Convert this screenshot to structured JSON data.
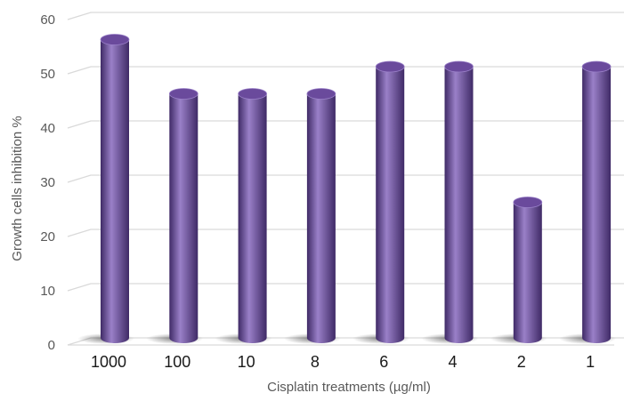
{
  "chart_data": {
    "type": "bar",
    "title": "",
    "xlabel": "Cisplatin treatments (µg/ml)",
    "ylabel": "Growth cells inhibition %",
    "categories": [
      "1000",
      "100",
      "10",
      "8",
      "6",
      "4",
      "2",
      "1"
    ],
    "values": [
      55,
      45,
      45,
      45,
      50,
      50,
      25,
      50
    ],
    "ylim": [
      0,
      60
    ],
    "yticks": [
      "0",
      "10",
      "20",
      "30",
      "40",
      "50",
      "60"
    ],
    "grid": true,
    "legend": "none",
    "style": "3d-cylinder",
    "colors": {
      "bar": "#6a4a9c",
      "bar_light": "#9a80c8",
      "bar_dark": "#3f2a66",
      "grid": "#d9d9d9"
    }
  }
}
